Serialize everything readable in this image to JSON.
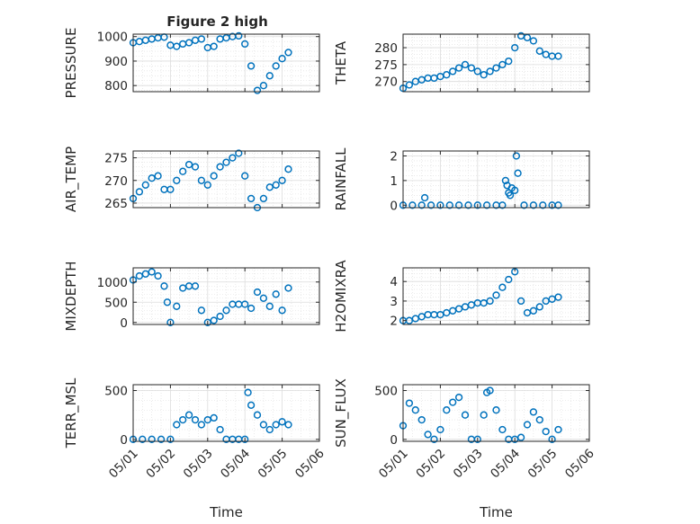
{
  "figure": {
    "background": "#ffffff",
    "marker_color": "#0072BD",
    "grid_color": "#dcdcdc"
  },
  "chart_data": [
    {
      "type": "scatter",
      "title": "Figure 2 high",
      "ylabel": "PRESSURE",
      "xlabel": "",
      "xlim": [
        "05/01",
        "05/06"
      ],
      "ylim": [
        775,
        1010
      ],
      "yticks": [
        800,
        900,
        1000
      ],
      "xticklabels": [],
      "grid": true,
      "x": [
        "05/01 00:00",
        "05/01 04:00",
        "05/01 08:00",
        "05/01 12:00",
        "05/01 16:00",
        "05/01 20:00",
        "05/02 00:00",
        "05/02 04:00",
        "05/02 08:00",
        "05/02 12:00",
        "05/02 16:00",
        "05/02 20:00",
        "05/03 00:00",
        "05/03 04:00",
        "05/03 08:00",
        "05/03 12:00",
        "05/03 16:00",
        "05/03 20:00",
        "05/04 00:00",
        "05/04 04:00",
        "05/04 08:00",
        "05/04 12:00",
        "05/04 16:00",
        "05/04 20:00",
        "05/05 00:00",
        "05/05 04:00"
      ],
      "y": [
        975,
        980,
        985,
        990,
        995,
        998,
        965,
        960,
        970,
        975,
        985,
        990,
        955,
        960,
        990,
        995,
        1000,
        1003,
        970,
        880,
        780,
        800,
        840,
        880,
        910,
        935
      ]
    },
    {
      "type": "scatter",
      "ylabel": "THETA",
      "xlabel": "",
      "xlim": [
        "05/01",
        "05/06"
      ],
      "ylim": [
        267,
        284
      ],
      "yticks": [
        270,
        275,
        280
      ],
      "xticklabels": [],
      "grid": true,
      "x": [
        "05/01 00:00",
        "05/01 04:00",
        "05/01 08:00",
        "05/01 12:00",
        "05/01 16:00",
        "05/01 20:00",
        "05/02 00:00",
        "05/02 04:00",
        "05/02 08:00",
        "05/02 12:00",
        "05/02 16:00",
        "05/02 20:00",
        "05/03 00:00",
        "05/03 04:00",
        "05/03 08:00",
        "05/03 12:00",
        "05/03 16:00",
        "05/03 20:00",
        "05/04 00:00",
        "05/04 04:00",
        "05/04 08:00",
        "05/04 12:00",
        "05/04 16:00",
        "05/04 20:00",
        "05/05 00:00",
        "05/05 04:00"
      ],
      "y": [
        268,
        269,
        270,
        270.5,
        271,
        271,
        271.5,
        272,
        273,
        274,
        275,
        274,
        273,
        272,
        273,
        274,
        275,
        276,
        280,
        283.5,
        283,
        282,
        279,
        278,
        277.5,
        277.5
      ]
    },
    {
      "type": "scatter",
      "ylabel": "AIR_TEMP",
      "xlabel": "",
      "xlim": [
        "05/01",
        "05/06"
      ],
      "ylim": [
        264,
        276.5
      ],
      "yticks": [
        265,
        270,
        275
      ],
      "xticklabels": [],
      "grid": true,
      "x": [
        "05/01 00:00",
        "05/01 04:00",
        "05/01 08:00",
        "05/01 12:00",
        "05/01 16:00",
        "05/01 20:00",
        "05/02 00:00",
        "05/02 04:00",
        "05/02 08:00",
        "05/02 12:00",
        "05/02 16:00",
        "05/02 20:00",
        "05/03 00:00",
        "05/03 04:00",
        "05/03 08:00",
        "05/03 12:00",
        "05/03 16:00",
        "05/03 20:00",
        "05/04 00:00",
        "05/04 04:00",
        "05/04 08:00",
        "05/04 12:00",
        "05/04 16:00",
        "05/04 20:00",
        "05/05 00:00",
        "05/05 04:00"
      ],
      "y": [
        266,
        267.5,
        269,
        270.5,
        271,
        268,
        268,
        270,
        272,
        273.5,
        273,
        270,
        269,
        271,
        273,
        274,
        275,
        276,
        271,
        266,
        264,
        266,
        268.5,
        269,
        270,
        272.5
      ]
    },
    {
      "type": "scatter",
      "ylabel": "RAINFALL",
      "xlabel": "",
      "xlim": [
        "05/01",
        "05/06"
      ],
      "ylim": [
        -0.1,
        2.2
      ],
      "yticks": [
        0,
        1,
        2
      ],
      "xticklabels": [],
      "grid": true,
      "x": [
        "05/01 00:00",
        "05/01 06:00",
        "05/01 12:00",
        "05/01 14:00",
        "05/01 18:00",
        "05/02 00:00",
        "05/02 06:00",
        "05/02 12:00",
        "05/02 18:00",
        "05/03 00:00",
        "05/03 06:00",
        "05/03 12:00",
        "05/03 16:00",
        "05/03 18:00",
        "05/03 19:00",
        "05/03 20:00",
        "05/03 21:00",
        "05/03 22:00",
        "05/04 00:00",
        "05/04 01:00",
        "05/04 02:00",
        "05/04 06:00",
        "05/04 12:00",
        "05/04 18:00",
        "05/05 00:00",
        "05/05 04:00"
      ],
      "y": [
        0,
        0,
        0,
        0.3,
        0,
        0,
        0,
        0,
        0,
        0,
        0,
        0,
        0,
        1.0,
        0.8,
        0.5,
        0.4,
        0.7,
        0.6,
        2.0,
        1.3,
        0,
        0,
        0,
        0,
        0
      ]
    },
    {
      "type": "scatter",
      "ylabel": "MIXDEPTH",
      "xlabel": "",
      "xlim": [
        "05/01",
        "05/06"
      ],
      "ylim": [
        -50,
        1350
      ],
      "yticks": [
        0,
        500,
        1000
      ],
      "xticklabels": [],
      "grid": true,
      "x": [
        "05/01 00:00",
        "05/01 04:00",
        "05/01 08:00",
        "05/01 12:00",
        "05/01 16:00",
        "05/01 20:00",
        "05/01 22:00",
        "05/02 00:00",
        "05/02 04:00",
        "05/02 08:00",
        "05/02 12:00",
        "05/02 16:00",
        "05/02 20:00",
        "05/03 00:00",
        "05/03 04:00",
        "05/03 08:00",
        "05/03 12:00",
        "05/03 16:00",
        "05/03 20:00",
        "05/04 00:00",
        "05/04 04:00",
        "05/04 08:00",
        "05/04 12:00",
        "05/04 16:00",
        "05/04 20:00",
        "05/05 00:00",
        "05/05 04:00"
      ],
      "y": [
        1050,
        1150,
        1200,
        1250,
        1150,
        900,
        500,
        0,
        400,
        850,
        900,
        900,
        300,
        0,
        50,
        150,
        300,
        450,
        450,
        450,
        350,
        750,
        600,
        400,
        700,
        300,
        850
      ]
    },
    {
      "type": "scatter",
      "ylabel": "H2OMIXRA",
      "xlabel": "",
      "xlim": [
        "05/01",
        "05/06"
      ],
      "ylim": [
        1.8,
        4.7
      ],
      "yticks": [
        2,
        3,
        4
      ],
      "xticklabels": [],
      "grid": true,
      "x": [
        "05/01 00:00",
        "05/01 04:00",
        "05/01 08:00",
        "05/01 12:00",
        "05/01 16:00",
        "05/01 20:00",
        "05/02 00:00",
        "05/02 04:00",
        "05/02 08:00",
        "05/02 12:00",
        "05/02 16:00",
        "05/02 20:00",
        "05/03 00:00",
        "05/03 04:00",
        "05/03 08:00",
        "05/03 12:00",
        "05/03 16:00",
        "05/03 20:00",
        "05/04 00:00",
        "05/04 04:00",
        "05/04 08:00",
        "05/04 12:00",
        "05/04 16:00",
        "05/04 20:00",
        "05/05 00:00",
        "05/05 04:00"
      ],
      "y": [
        2.0,
        2.0,
        2.1,
        2.2,
        2.3,
        2.3,
        2.3,
        2.4,
        2.5,
        2.6,
        2.7,
        2.8,
        2.9,
        2.9,
        3.0,
        3.3,
        3.7,
        4.1,
        4.5,
        3.0,
        2.4,
        2.5,
        2.7,
        3.0,
        3.1,
        3.2
      ]
    },
    {
      "type": "scatter",
      "ylabel": "TERR_MSL",
      "xlabel": "Time",
      "xlim": [
        "05/01",
        "05/06"
      ],
      "ylim": [
        -20,
        560
      ],
      "yticks": [
        0,
        500
      ],
      "xticklabels": [
        "05/01",
        "05/02",
        "05/03",
        "05/04",
        "05/05",
        "05/06"
      ],
      "grid": true,
      "x": [
        "05/01 00:00",
        "05/01 06:00",
        "05/01 12:00",
        "05/01 18:00",
        "05/02 00:00",
        "05/02 04:00",
        "05/02 08:00",
        "05/02 12:00",
        "05/02 16:00",
        "05/02 20:00",
        "05/03 00:00",
        "05/03 04:00",
        "05/03 08:00",
        "05/03 12:00",
        "05/03 16:00",
        "05/03 20:00",
        "05/04 00:00",
        "05/04 02:00",
        "05/04 04:00",
        "05/04 08:00",
        "05/04 12:00",
        "05/04 16:00",
        "05/04 20:00",
        "05/05 00:00",
        "05/05 04:00"
      ],
      "y": [
        0,
        0,
        0,
        0,
        0,
        150,
        200,
        250,
        200,
        150,
        200,
        220,
        100,
        0,
        0,
        0,
        0,
        480,
        350,
        250,
        150,
        100,
        150,
        180,
        150
      ]
    },
    {
      "type": "scatter",
      "ylabel": "SUN_FLUX",
      "xlabel": "Time",
      "xlim": [
        "05/01",
        "05/06"
      ],
      "ylim": [
        -20,
        560
      ],
      "yticks": [
        0,
        500
      ],
      "xticklabels": [
        "05/01",
        "05/02",
        "05/03",
        "05/04",
        "05/05",
        "05/06"
      ],
      "grid": true,
      "x": [
        "05/01 00:00",
        "05/01 04:00",
        "05/01 08:00",
        "05/01 12:00",
        "05/01 16:00",
        "05/01 20:00",
        "05/02 00:00",
        "05/02 04:00",
        "05/02 08:00",
        "05/02 12:00",
        "05/02 16:00",
        "05/02 20:00",
        "05/03 00:00",
        "05/03 04:00",
        "05/03 06:00",
        "05/03 08:00",
        "05/03 12:00",
        "05/03 16:00",
        "05/03 20:00",
        "05/04 00:00",
        "05/04 04:00",
        "05/04 08:00",
        "05/04 12:00",
        "05/04 16:00",
        "05/04 20:00",
        "05/05 00:00",
        "05/05 04:00"
      ],
      "y": [
        140,
        370,
        300,
        200,
        50,
        0,
        100,
        300,
        380,
        430,
        250,
        0,
        0,
        250,
        480,
        500,
        300,
        100,
        0,
        0,
        20,
        150,
        280,
        200,
        80,
        0,
        100
      ]
    }
  ]
}
